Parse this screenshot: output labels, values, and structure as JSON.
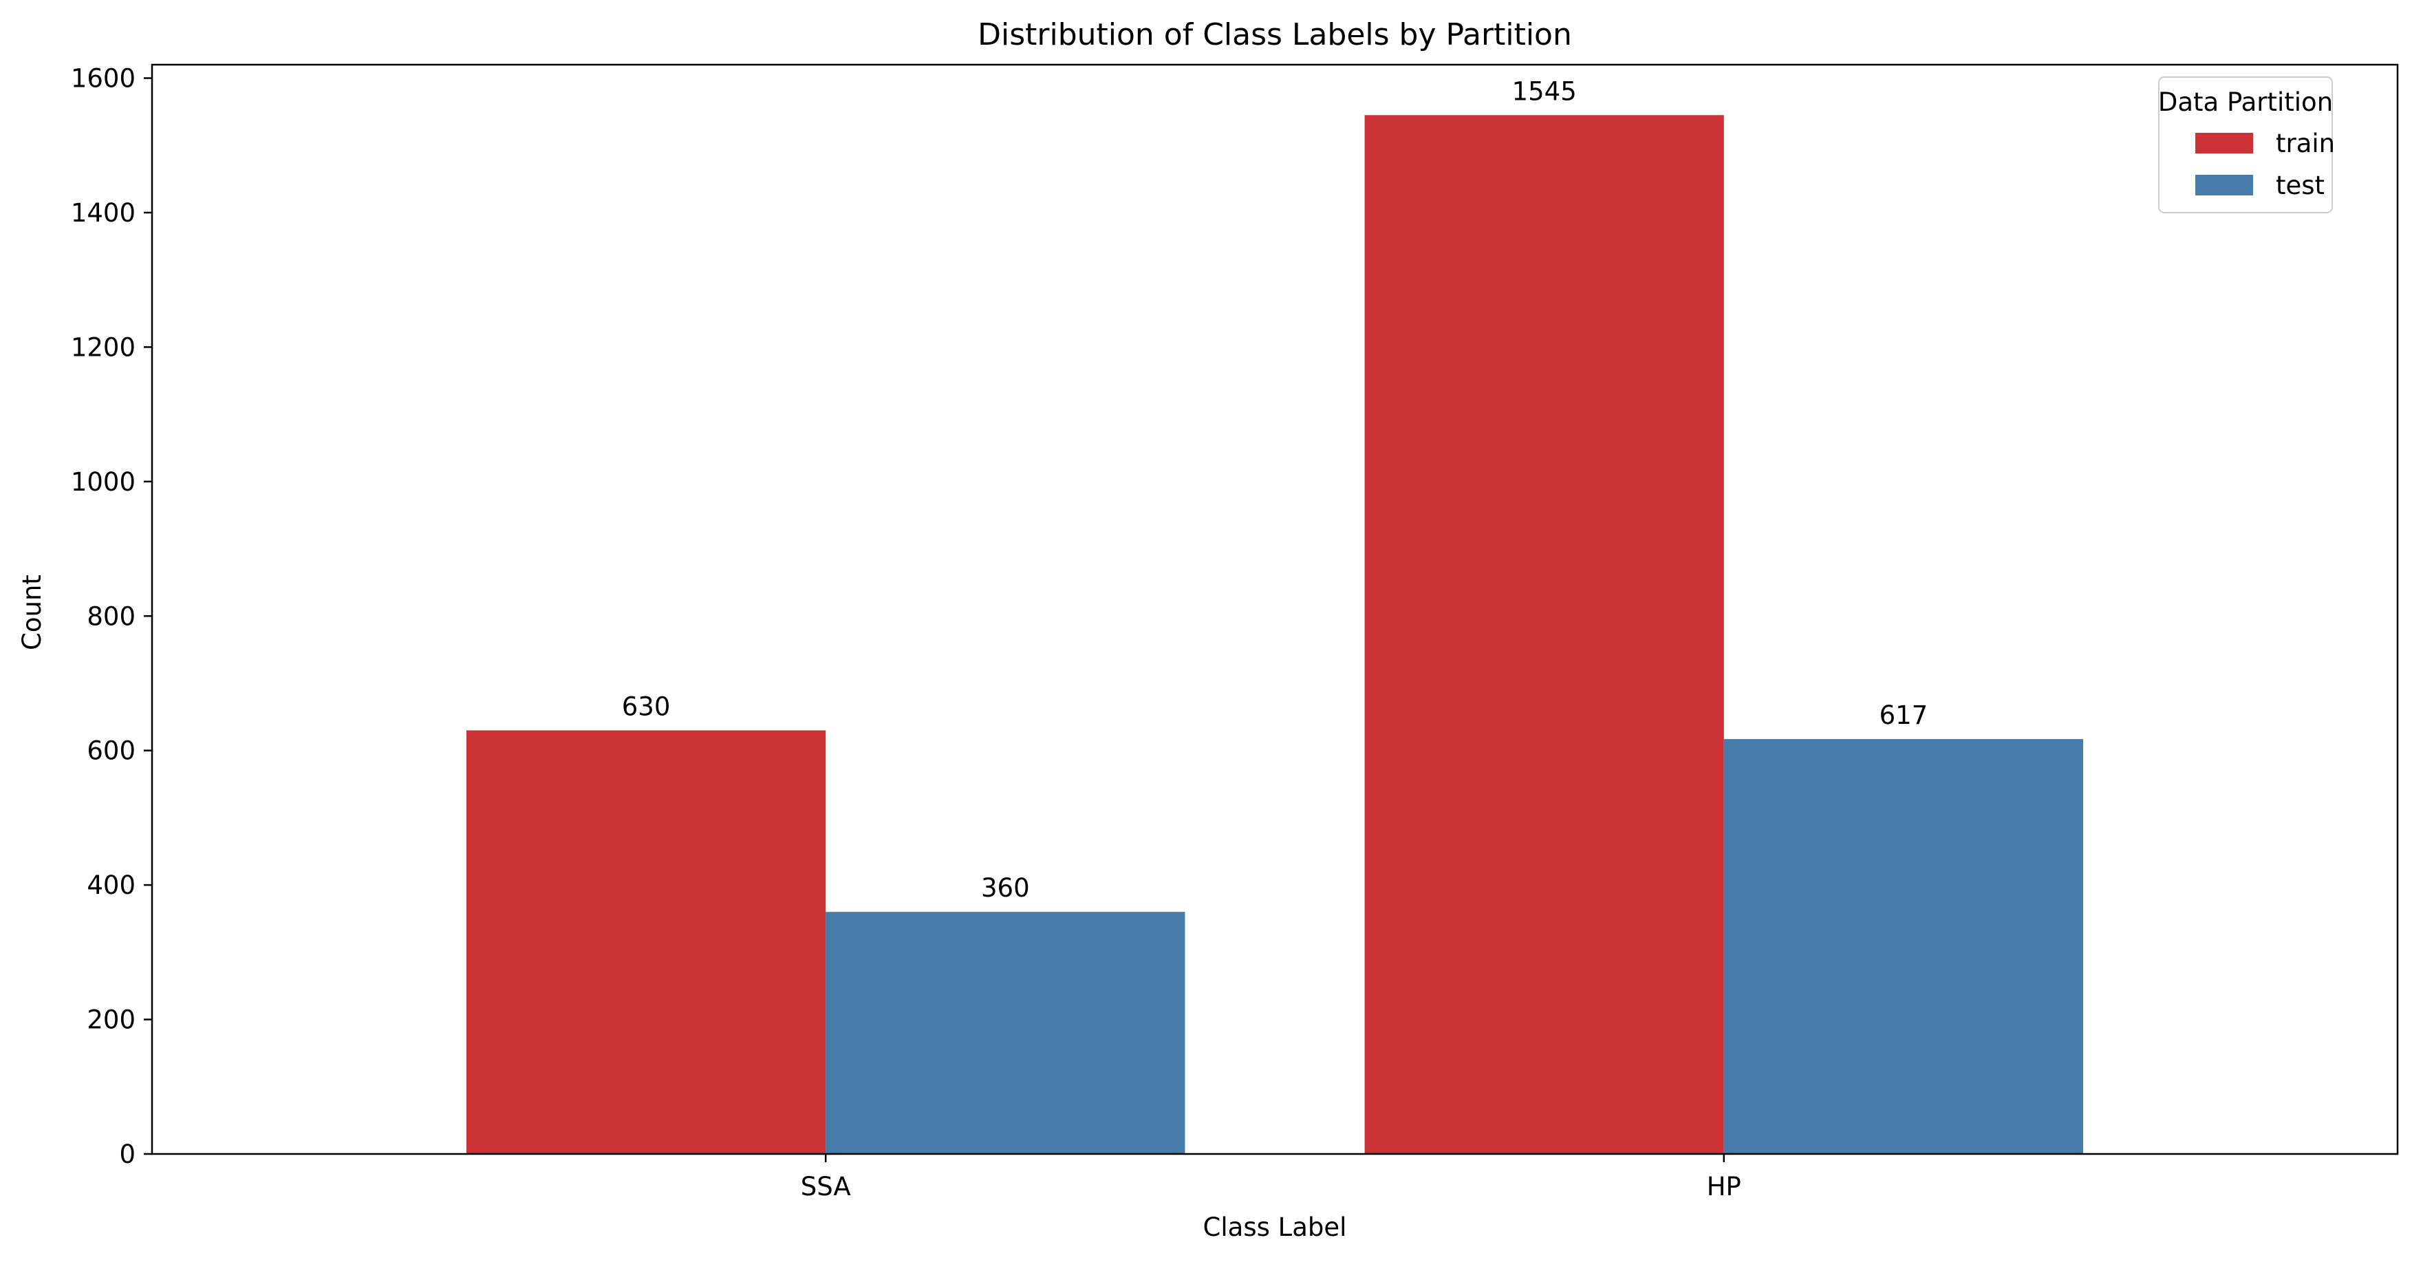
{
  "chart_data": {
    "type": "bar",
    "title": "Distribution of Class Labels by Partition",
    "xlabel": "Class Label",
    "ylabel": "Count",
    "categories": [
      "SSA",
      "HP"
    ],
    "series": [
      {
        "name": "train",
        "values": [
          630,
          1545
        ],
        "color": "#cc3235"
      },
      {
        "name": "test",
        "values": [
          360,
          617
        ],
        "color": "#477ba9"
      }
    ],
    "data_labels": [
      [
        "630",
        "1545"
      ],
      [
        "360",
        "617"
      ]
    ],
    "ylim": [
      0,
      1600
    ],
    "yticks": [
      0,
      200,
      400,
      600,
      800,
      1000,
      1200,
      1400,
      1600
    ],
    "ytick_labels": [
      "0",
      "200",
      "400",
      "600",
      "800",
      "1000",
      "1200",
      "1400",
      "1600"
    ],
    "grid": false,
    "legend": {
      "title": "Data Partition",
      "placement": "top-right"
    }
  }
}
